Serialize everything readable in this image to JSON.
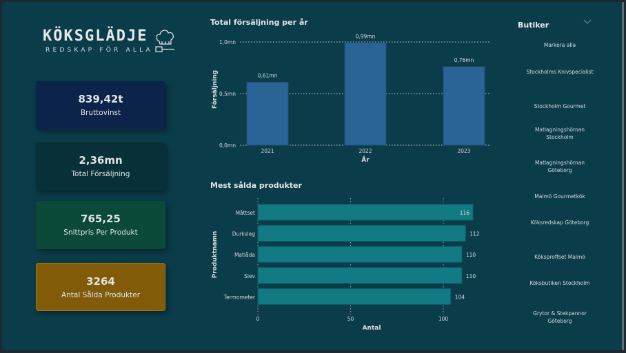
{
  "logo": {
    "title": "KÖKSGLÄDJE",
    "subtitle": "REDSKAP FÖR ALLA"
  },
  "kpis": [
    {
      "value": "839,42t",
      "label": "Bruttovinst",
      "color": "#0c234a"
    },
    {
      "value": "2,36mn",
      "label": "Total Försäljning",
      "color": "#073039"
    },
    {
      "value": "765,25",
      "label": "Snittpris Per Produkt",
      "color": "#0b4a38"
    },
    {
      "value": "3264",
      "label": "Antal Sålda Produkter",
      "color": "#825b08"
    }
  ],
  "slicer": {
    "title": "Butiker",
    "items": [
      "Markera alla",
      "Stockholms Knivspecialist",
      "Stockholm Gourmet",
      "Matlagningshörnan Stockholm",
      "Matlagningshörnan Göteborg",
      "Malmö Gourmetkök",
      "Köksredskap Göteborg",
      "Köksproffset Malmö",
      "Köksbutiken Stockholm",
      "Grytor & Stekpannor Göteborg"
    ]
  },
  "chart_data": [
    {
      "type": "bar",
      "title": "Total försäljning per år",
      "xlabel": "År",
      "ylabel": "Försäljning",
      "categories": [
        "2021",
        "2022",
        "2023"
      ],
      "values": [
        0.61,
        0.99,
        0.76
      ],
      "data_labels": [
        "0,61mn",
        "0,99mn",
        "0,76mn"
      ],
      "ylim": [
        0,
        1.0
      ],
      "yticks": [
        0,
        0.5,
        1.0
      ],
      "ytick_labels": [
        "0,0mn",
        "0,5mn",
        "1,0mn"
      ],
      "grid": true,
      "color": "#2a6496"
    },
    {
      "type": "bar",
      "orientation": "horizontal",
      "title": "Mest sålda produkter",
      "xlabel": "Antal",
      "ylabel": "Produktnamn",
      "categories": [
        "Måttset",
        "Durkslag",
        "Matlåda",
        "Slev",
        "Termometer"
      ],
      "values": [
        116,
        112,
        110,
        110,
        104
      ],
      "xticks": [
        0,
        50,
        100
      ],
      "xtick_labels": [
        "0",
        "50",
        "100"
      ],
      "grid": true,
      "color": "#127a82"
    }
  ]
}
